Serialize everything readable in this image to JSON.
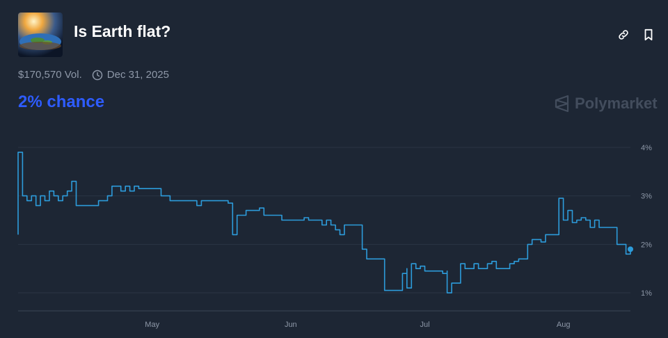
{
  "market": {
    "title": "Is Earth flat?",
    "volume": "$170,570 Vol.",
    "end_date": "Dec 31, 2025",
    "chance": "2% chance",
    "brand": "Polymarket",
    "image_icon": "flat-earth-image"
  },
  "actions": {
    "link_icon": "link-icon",
    "bookmark_icon": "bookmark-icon"
  },
  "colors": {
    "background": "#1d2634",
    "line": "#2d9cdb",
    "chance_text": "#2e5cff",
    "muted": "#8e98a8"
  },
  "chart_data": {
    "type": "line",
    "title": "",
    "xlabel": "",
    "ylabel": "",
    "x_ticks": [
      "May",
      "Jun",
      "Jul",
      "Aug"
    ],
    "y_ticks": [
      "1%",
      "2%",
      "3%",
      "4%"
    ],
    "ylim": [
      0.8,
      4.2
    ],
    "xlim": [
      "2025-04-01",
      "2025-08-16"
    ],
    "grid": true,
    "series": [
      {
        "values": [
          [
            "2025-04-01",
            2.2
          ],
          [
            "2025-04-01",
            3.9
          ],
          [
            "2025-04-02",
            3.0
          ],
          [
            "2025-04-03",
            2.9
          ],
          [
            "2025-04-04",
            3.0
          ],
          [
            "2025-04-05",
            2.8
          ],
          [
            "2025-04-06",
            3.0
          ],
          [
            "2025-04-07",
            2.9
          ],
          [
            "2025-04-08",
            3.1
          ],
          [
            "2025-04-09",
            3.0
          ],
          [
            "2025-04-10",
            2.9
          ],
          [
            "2025-04-11",
            3.0
          ],
          [
            "2025-04-12",
            3.1
          ],
          [
            "2025-04-13",
            3.3
          ],
          [
            "2025-04-14",
            2.8
          ],
          [
            "2025-04-15",
            2.8
          ],
          [
            "2025-04-17",
            2.8
          ],
          [
            "2025-04-19",
            2.9
          ],
          [
            "2025-04-21",
            3.0
          ],
          [
            "2025-04-22",
            3.2
          ],
          [
            "2025-04-23",
            3.2
          ],
          [
            "2025-04-24",
            3.1
          ],
          [
            "2025-04-25",
            3.2
          ],
          [
            "2025-04-26",
            3.1
          ],
          [
            "2025-04-27",
            3.2
          ],
          [
            "2025-04-28",
            3.15
          ],
          [
            "2025-04-30",
            3.15
          ],
          [
            "2025-05-02",
            3.15
          ],
          [
            "2025-05-03",
            3.0
          ],
          [
            "2025-05-04",
            3.0
          ],
          [
            "2025-05-05",
            2.9
          ],
          [
            "2025-05-06",
            2.9
          ],
          [
            "2025-05-08",
            2.9
          ],
          [
            "2025-05-10",
            2.9
          ],
          [
            "2025-05-11",
            2.8
          ],
          [
            "2025-05-12",
            2.9
          ],
          [
            "2025-05-13",
            2.9
          ],
          [
            "2025-05-14",
            2.9
          ],
          [
            "2025-05-16",
            2.9
          ],
          [
            "2025-05-18",
            2.85
          ],
          [
            "2025-05-19",
            2.2
          ],
          [
            "2025-05-20",
            2.6
          ],
          [
            "2025-05-21",
            2.6
          ],
          [
            "2025-05-22",
            2.7
          ],
          [
            "2025-05-24",
            2.7
          ],
          [
            "2025-05-25",
            2.75
          ],
          [
            "2025-05-26",
            2.6
          ],
          [
            "2025-05-27",
            2.6
          ],
          [
            "2025-05-29",
            2.6
          ],
          [
            "2025-05-30",
            2.5
          ],
          [
            "2025-06-01",
            2.5
          ],
          [
            "2025-06-03",
            2.5
          ],
          [
            "2025-06-04",
            2.55
          ],
          [
            "2025-06-05",
            2.5
          ],
          [
            "2025-06-07",
            2.5
          ],
          [
            "2025-06-08",
            2.4
          ],
          [
            "2025-06-09",
            2.5
          ],
          [
            "2025-06-10",
            2.4
          ],
          [
            "2025-06-11",
            2.3
          ],
          [
            "2025-06-12",
            2.2
          ],
          [
            "2025-06-13",
            2.4
          ],
          [
            "2025-06-15",
            2.4
          ],
          [
            "2025-06-16",
            2.4
          ],
          [
            "2025-06-17",
            1.9
          ],
          [
            "2025-06-18",
            1.7
          ],
          [
            "2025-06-19",
            1.7
          ],
          [
            "2025-06-20",
            1.7
          ],
          [
            "2025-06-22",
            1.05
          ],
          [
            "2025-06-24",
            1.05
          ],
          [
            "2025-06-25",
            1.05
          ],
          [
            "2025-06-26",
            1.4
          ],
          [
            "2025-06-27",
            1.5
          ],
          [
            "2025-06-27",
            1.1
          ],
          [
            "2025-06-28",
            1.6
          ],
          [
            "2025-06-29",
            1.5
          ],
          [
            "2025-06-30",
            1.55
          ],
          [
            "2025-07-01",
            1.45
          ],
          [
            "2025-07-03",
            1.45
          ],
          [
            "2025-07-05",
            1.4
          ],
          [
            "2025-07-06",
            1.45
          ],
          [
            "2025-07-06",
            1.0
          ],
          [
            "2025-07-07",
            1.2
          ],
          [
            "2025-07-08",
            1.2
          ],
          [
            "2025-07-09",
            1.6
          ],
          [
            "2025-07-10",
            1.5
          ],
          [
            "2025-07-12",
            1.6
          ],
          [
            "2025-07-13",
            1.5
          ],
          [
            "2025-07-14",
            1.5
          ],
          [
            "2025-07-15",
            1.6
          ],
          [
            "2025-07-16",
            1.65
          ],
          [
            "2025-07-17",
            1.5
          ],
          [
            "2025-07-19",
            1.5
          ],
          [
            "2025-07-20",
            1.6
          ],
          [
            "2025-07-21",
            1.65
          ],
          [
            "2025-07-22",
            1.7
          ],
          [
            "2025-07-24",
            2.0
          ],
          [
            "2025-07-25",
            2.1
          ],
          [
            "2025-07-27",
            2.05
          ],
          [
            "2025-07-28",
            2.2
          ],
          [
            "2025-07-29",
            2.2
          ],
          [
            "2025-07-30",
            2.2
          ],
          [
            "2025-07-31",
            2.95
          ],
          [
            "2025-08-01",
            2.5
          ],
          [
            "2025-08-02",
            2.7
          ],
          [
            "2025-08-03",
            2.45
          ],
          [
            "2025-08-04",
            2.5
          ],
          [
            "2025-08-05",
            2.55
          ],
          [
            "2025-08-06",
            2.5
          ],
          [
            "2025-08-07",
            2.35
          ],
          [
            "2025-08-08",
            2.5
          ],
          [
            "2025-08-09",
            2.35
          ],
          [
            "2025-08-11",
            2.35
          ],
          [
            "2025-08-12",
            2.35
          ],
          [
            "2025-08-13",
            2.0
          ],
          [
            "2025-08-14",
            2.0
          ],
          [
            "2025-08-15",
            1.8
          ],
          [
            "2025-08-16",
            1.9
          ]
        ]
      }
    ]
  }
}
